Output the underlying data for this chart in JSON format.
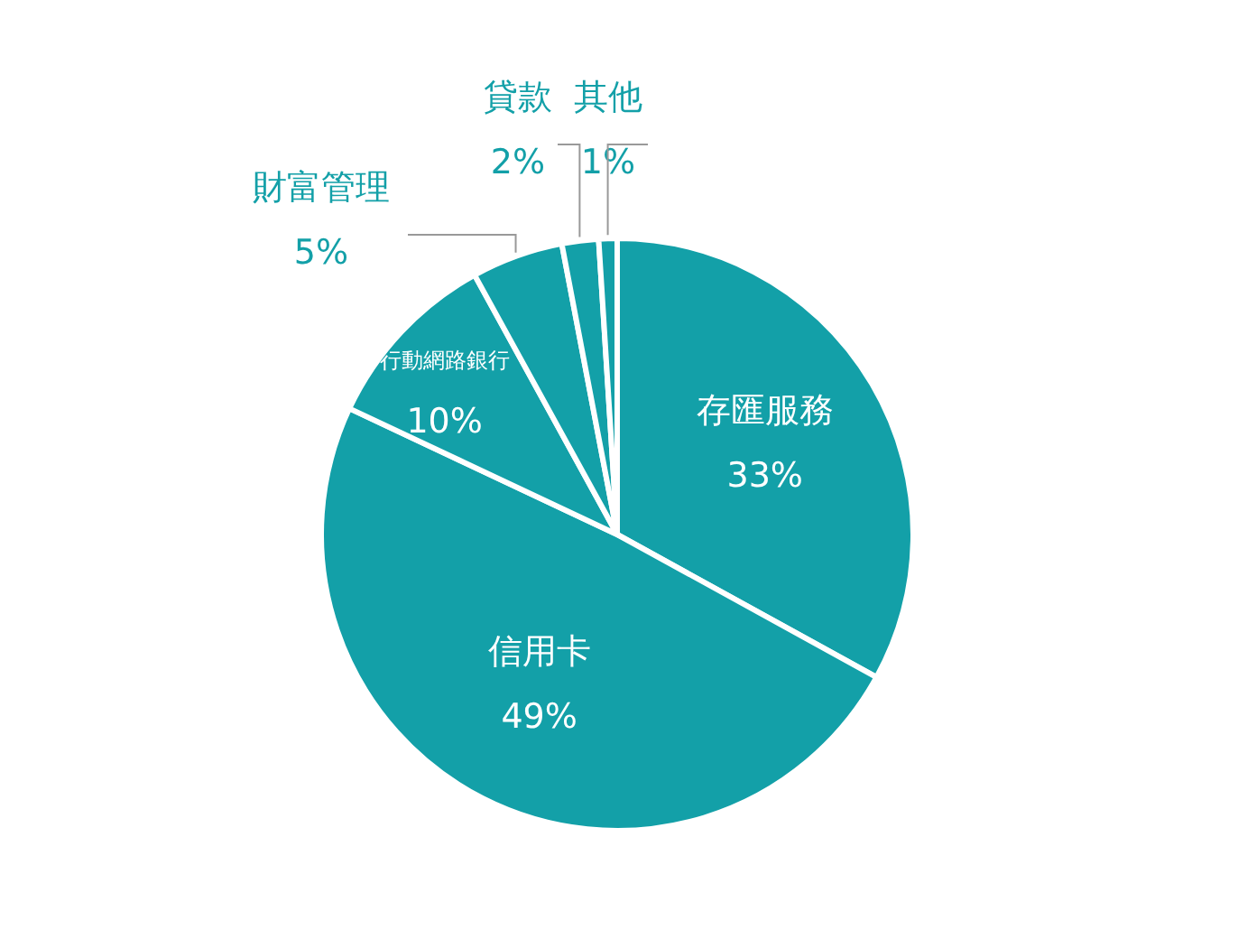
{
  "chart_data": {
    "type": "pie",
    "categories": [
      "存匯服務",
      "信用卡",
      "行動網路銀行",
      "財富管理",
      "貸款",
      "其他"
    ],
    "values": [
      33,
      49,
      10,
      5,
      2,
      1
    ],
    "colors": [
      "#13a0a8",
      "#13a0a8",
      "#13a0a8",
      "#13a0a8",
      "#13a0a8",
      "#13a0a8"
    ],
    "value_labels": [
      "33%",
      "49%",
      "10%",
      "5%",
      "2%",
      "1%"
    ]
  }
}
